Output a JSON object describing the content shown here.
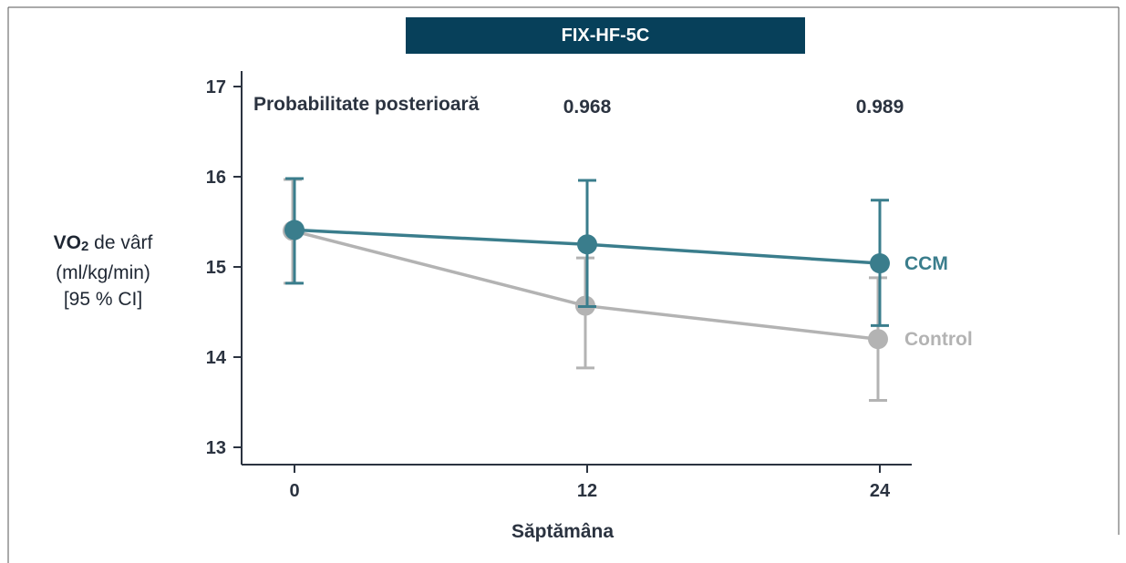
{
  "title": "FIX-HF-5C",
  "colors": {
    "title_bg": "#07405a",
    "ccm": "#3a7d8c",
    "control": "#b3b3b3",
    "axis": "#2b3340"
  },
  "ylabel": {
    "main": "VO",
    "sub": "2",
    "rest": " de vârf",
    "line2": "(ml/kg/min)",
    "line3": "[95 % CI]"
  },
  "posterior": {
    "label": "Probabilitate posterioară",
    "values": [
      "0.968",
      "0.989"
    ]
  },
  "chart_data": {
    "type": "line",
    "title": "FIX-HF-5C",
    "xlabel": "Săptămâna",
    "ylabel": "VO2 de vârf (ml/kg/min) [95 % CI]",
    "x": [
      0,
      12,
      24
    ],
    "x_ticks": [
      "0",
      "12",
      "24"
    ],
    "y_ticks": [
      "13",
      "14",
      "15",
      "16",
      "17"
    ],
    "ylim": [
      13,
      17
    ],
    "series": [
      {
        "name": "Control",
        "values": [
          15.4,
          14.57,
          14.2
        ],
        "ci_low": [
          14.82,
          13.88,
          13.52
        ],
        "ci_high": [
          15.97,
          15.1,
          14.88
        ]
      },
      {
        "name": "CCM",
        "values": [
          15.41,
          15.25,
          15.04
        ],
        "ci_low": [
          14.82,
          14.56,
          14.35
        ],
        "ci_high": [
          15.98,
          15.96,
          15.74
        ]
      }
    ],
    "grid": false,
    "legend": "labels at line ends"
  }
}
